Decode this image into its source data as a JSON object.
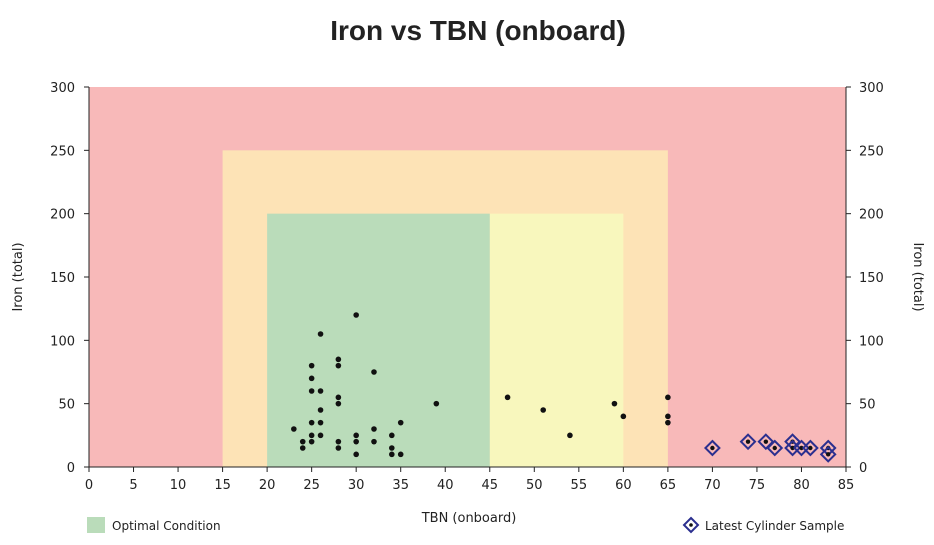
{
  "colors": {
    "red_zone": "#f8b9b9",
    "orange_zone": "#fde3b6",
    "yellow_zone": "#f8f7bd",
    "green_zone": "#badcba",
    "point": "#111111",
    "latest_marker": "#2b2f8f",
    "axis": "#222222"
  },
  "chart_data": {
    "type": "scatter",
    "title": "Iron vs TBN (onboard)",
    "xlabel": "TBN (onboard)",
    "ylabel": "Iron (total)",
    "y2label": "Iron (total)",
    "xlim": [
      0,
      85
    ],
    "ylim": [
      0,
      300
    ],
    "x_ticks": [
      0,
      5,
      10,
      15,
      20,
      25,
      30,
      35,
      40,
      45,
      50,
      55,
      60,
      65,
      70,
      75,
      80,
      85
    ],
    "y_ticks": [
      0,
      50,
      100,
      150,
      200,
      250,
      300
    ],
    "grid": false,
    "zones": [
      {
        "name": "red",
        "x": [
          0,
          85
        ],
        "y": [
          0,
          300
        ],
        "color": "#f8b9b9"
      },
      {
        "name": "orange",
        "x": [
          15,
          65
        ],
        "y": [
          0,
          250
        ],
        "color": "#fde3b6"
      },
      {
        "name": "yellow",
        "x": [
          45,
          60
        ],
        "y": [
          0,
          200
        ],
        "color": "#f8f7bd"
      },
      {
        "name": "green",
        "x": [
          20,
          45
        ],
        "y": [
          0,
          200
        ],
        "color": "#badcba"
      }
    ],
    "series": [
      {
        "marker": "dot",
        "points": [
          [
            23,
            30
          ],
          [
            24,
            20
          ],
          [
            24,
            15
          ],
          [
            25,
            80
          ],
          [
            25,
            70
          ],
          [
            25,
            60
          ],
          [
            25,
            35
          ],
          [
            25,
            25
          ],
          [
            25,
            20
          ],
          [
            26,
            105
          ],
          [
            26,
            60
          ],
          [
            26,
            45
          ],
          [
            26,
            35
          ],
          [
            26,
            25
          ],
          [
            28,
            85
          ],
          [
            28,
            80
          ],
          [
            28,
            55
          ],
          [
            28,
            50
          ],
          [
            28,
            20
          ],
          [
            28,
            15
          ],
          [
            30,
            120
          ],
          [
            30,
            25
          ],
          [
            30,
            20
          ],
          [
            30,
            10
          ],
          [
            32,
            75
          ],
          [
            32,
            30
          ],
          [
            32,
            20
          ],
          [
            34,
            25
          ],
          [
            34,
            15
          ],
          [
            34,
            10
          ],
          [
            35,
            35
          ],
          [
            35,
            10
          ],
          [
            39,
            50
          ],
          [
            47,
            55
          ],
          [
            51,
            45
          ],
          [
            54,
            25
          ],
          [
            59,
            50
          ],
          [
            60,
            40
          ],
          [
            65,
            55
          ],
          [
            65,
            40
          ],
          [
            65,
            35
          ]
        ]
      },
      {
        "name": "Latest Cylinder Sample",
        "marker": "diamond",
        "points": [
          [
            70,
            15
          ],
          [
            74,
            20
          ],
          [
            76,
            20
          ],
          [
            77,
            15
          ],
          [
            79,
            20
          ],
          [
            79,
            15
          ],
          [
            80,
            15
          ],
          [
            81,
            15
          ],
          [
            83,
            15
          ],
          [
            83,
            10
          ]
        ]
      }
    ],
    "legend": [
      {
        "label": "Optimal Condition",
        "swatch": "green-square",
        "position": "bottom-left"
      },
      {
        "label": "Latest Cylinder Sample",
        "swatch": "diamond",
        "position": "bottom-right"
      }
    ]
  }
}
